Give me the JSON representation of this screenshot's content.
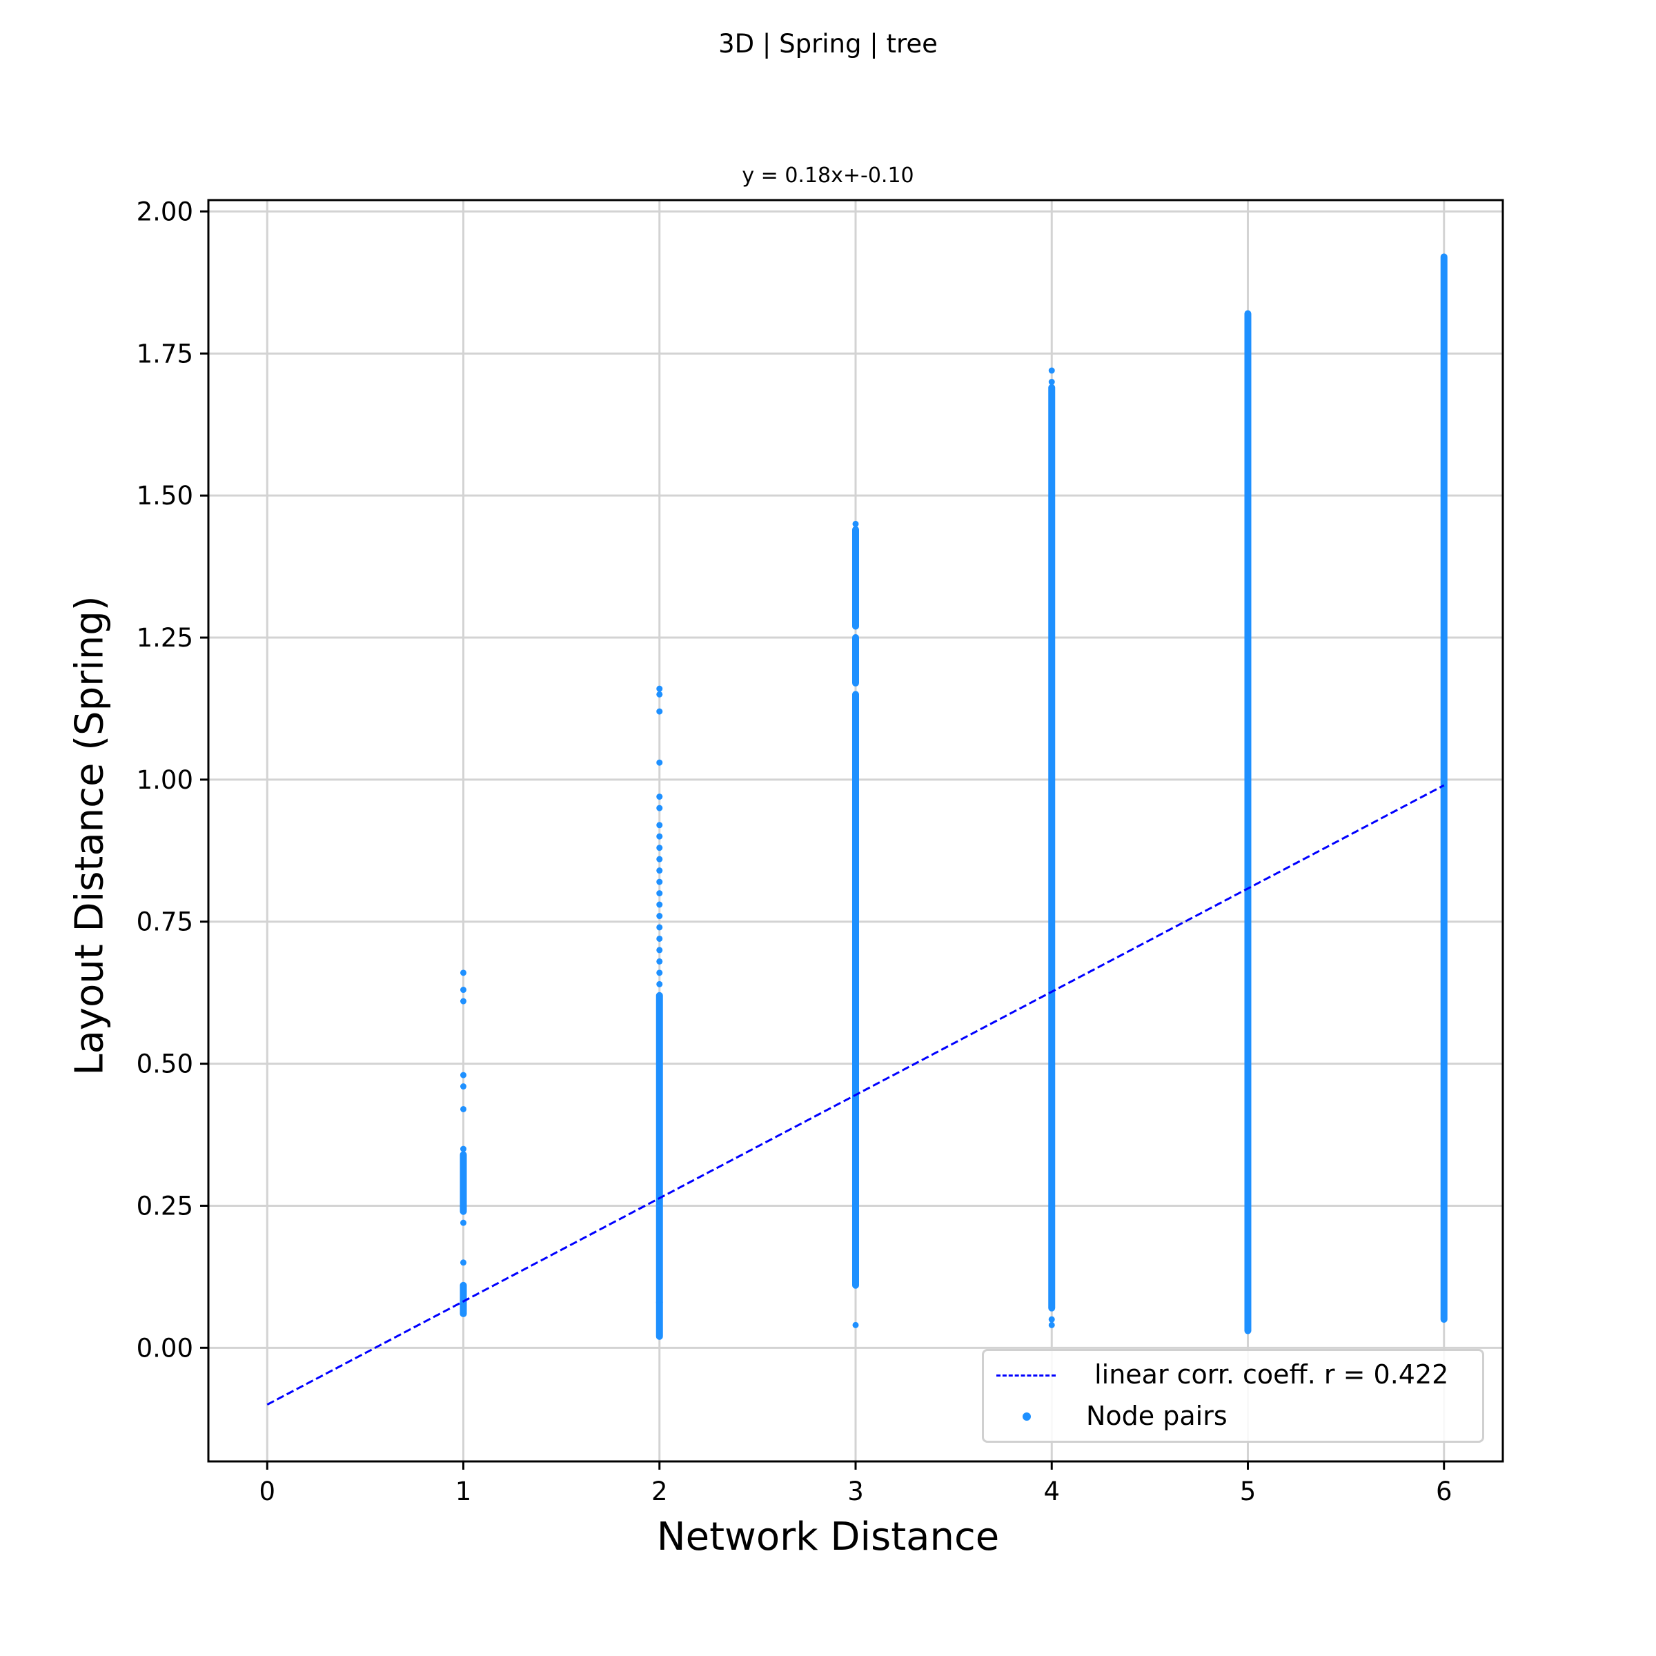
{
  "figure_title": "3D | Spring | tree",
  "chart_data": {
    "type": "scatter",
    "title": "y = 0.18x+-0.10",
    "xlabel": "Network Distance",
    "ylabel": "Layout Distance (Spring)",
    "xlim": [
      -0.3,
      6.3
    ],
    "ylim": [
      -0.2,
      2.02
    ],
    "xticks": [
      "0",
      "1",
      "2",
      "3",
      "4",
      "5",
      "6"
    ],
    "yticks": [
      "0.00",
      "0.25",
      "0.50",
      "0.75",
      "1.00",
      "1.25",
      "1.50",
      "1.75",
      "2.00"
    ],
    "grid": true,
    "legend_position": "lower-right",
    "series": [
      {
        "name": "Node pairs",
        "kind": "scatter",
        "color": "#1e90ff",
        "columns": [
          {
            "x": 1,
            "ranges": [
              [
                0.06,
                0.11
              ],
              [
                0.24,
                0.34
              ]
            ],
            "points": [
              0.15,
              0.22,
              0.35,
              0.42,
              0.46,
              0.48,
              0.61,
              0.63,
              0.66
            ]
          },
          {
            "x": 2,
            "ranges": [
              [
                0.02,
                0.08
              ],
              [
                0.08,
                0.62
              ]
            ],
            "points": [
              0.64,
              0.66,
              0.68,
              0.7,
              0.72,
              0.74,
              0.76,
              0.78,
              0.8,
              0.82,
              0.84,
              0.86,
              0.88,
              0.9,
              0.92,
              0.95,
              0.97,
              1.03,
              1.12,
              1.15,
              1.16
            ]
          },
          {
            "x": 3,
            "ranges": [
              [
                0.11,
                1.15
              ],
              [
                1.17,
                1.25
              ],
              [
                1.27,
                1.44
              ]
            ],
            "points": [
              0.04,
              1.45
            ]
          },
          {
            "x": 4,
            "ranges": [
              [
                0.07,
                1.69
              ]
            ],
            "points": [
              0.04,
              0.05,
              1.7,
              1.72
            ]
          },
          {
            "x": 5,
            "ranges": [
              [
                0.03,
                1.82
              ]
            ],
            "points": []
          },
          {
            "x": 6,
            "ranges": [
              [
                0.05,
                1.92
              ]
            ],
            "points": []
          }
        ]
      },
      {
        "name": " linear corr. coeff. r = 0.422",
        "kind": "line",
        "style": "dashed",
        "color": "#0000ff",
        "x": [
          0,
          6
        ],
        "y": [
          -0.1,
          0.99
        ]
      }
    ]
  }
}
